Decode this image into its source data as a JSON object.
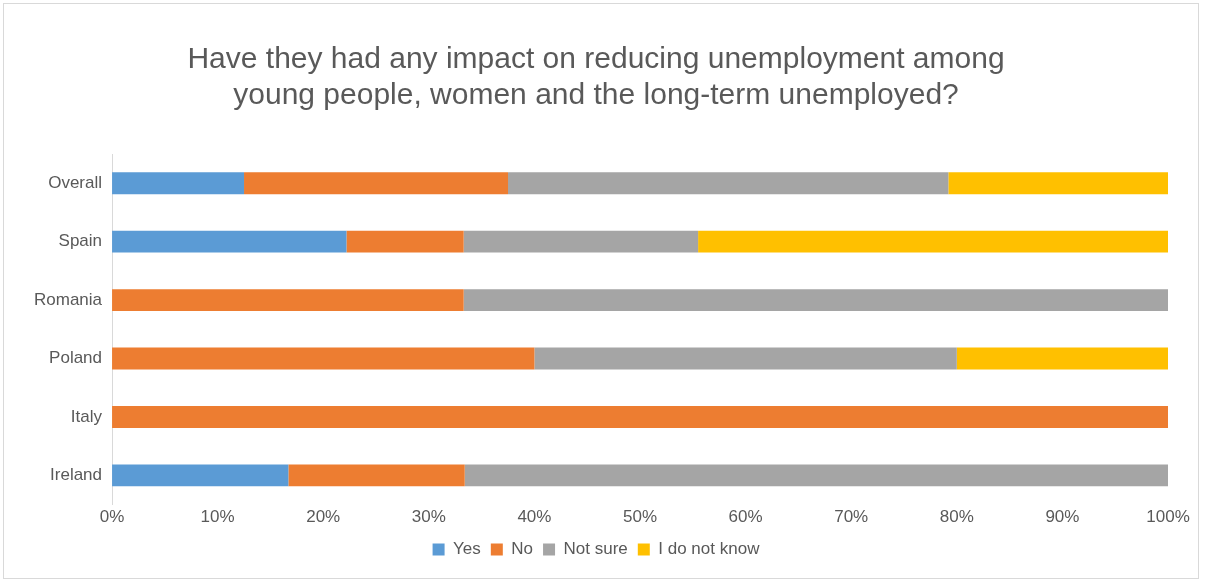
{
  "chart_data": {
    "type": "bar",
    "orientation": "horizontal",
    "stacked": true,
    "title": "Have they had any impact on reducing unemployment among young people, women and the long-term unemployed?",
    "categories": [
      "Overall",
      "Spain",
      "Romania",
      "Poland",
      "Italy",
      "Ireland"
    ],
    "series": [
      {
        "name": "Yes",
        "color": "#5b9bd5",
        "values": [
          12.5,
          22.2,
          0,
          0,
          0,
          16.7
        ]
      },
      {
        "name": "No",
        "color": "#ed7d31",
        "values": [
          25,
          11.1,
          33.3,
          40,
          100,
          16.7
        ]
      },
      {
        "name": "Not sure",
        "color": "#a5a5a5",
        "values": [
          41.7,
          22.2,
          66.7,
          40,
          0,
          66.6
        ]
      },
      {
        "name": "I do not know",
        "color": "#ffc000",
        "values": [
          20.8,
          44.5,
          0,
          20,
          0,
          0
        ]
      }
    ],
    "xlim": [
      0,
      100
    ],
    "xticks": [
      {
        "value": 0,
        "label": "0%"
      },
      {
        "value": 10,
        "label": "10%"
      },
      {
        "value": 20,
        "label": "20%"
      },
      {
        "value": 30,
        "label": "30%"
      },
      {
        "value": 40,
        "label": "40%"
      },
      {
        "value": 50,
        "label": "50%"
      },
      {
        "value": 60,
        "label": "60%"
      },
      {
        "value": 70,
        "label": "70%"
      },
      {
        "value": 80,
        "label": "80%"
      },
      {
        "value": 90,
        "label": "90%"
      },
      {
        "value": 100,
        "label": "100%"
      }
    ],
    "grid": false,
    "legend": "bottom"
  }
}
